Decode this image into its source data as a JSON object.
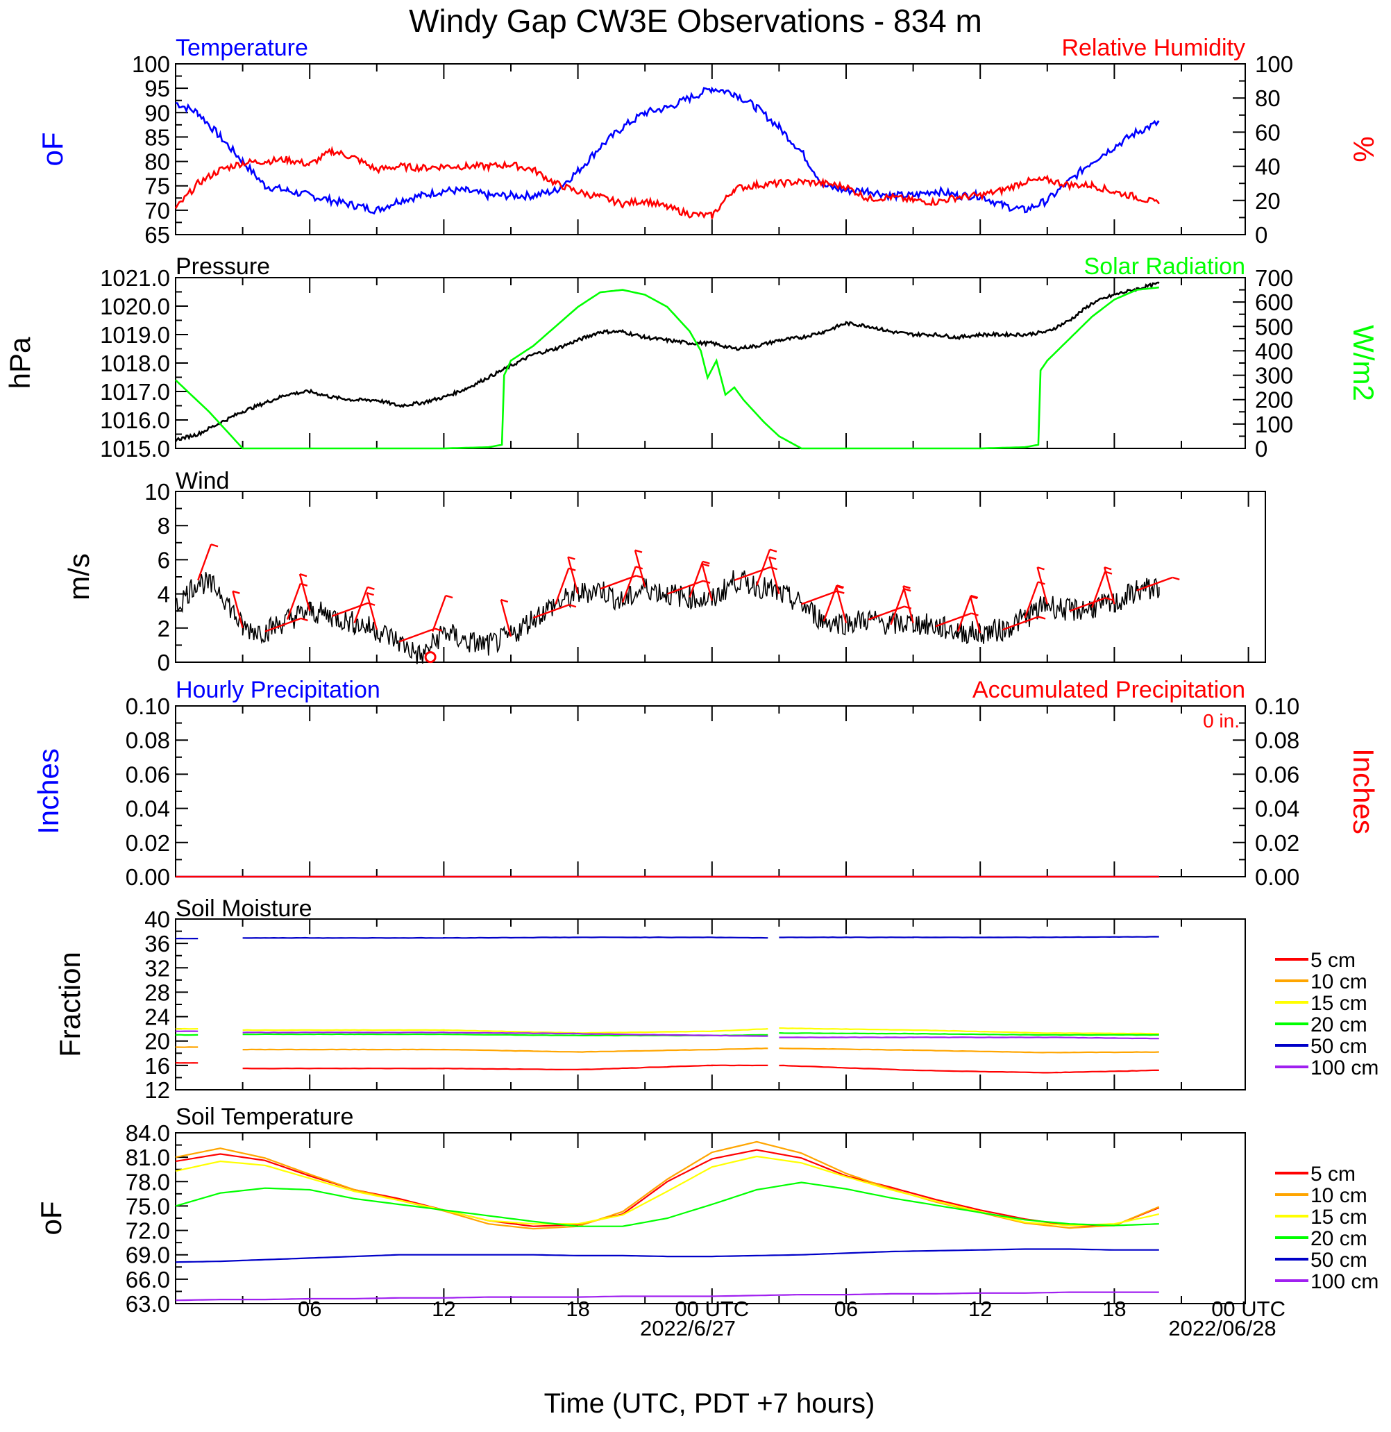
{
  "title": "Windy Gap CW3E Observations - 834 m",
  "x_axis": {
    "ticks": [
      "06",
      "12",
      "18",
      "00 UTC",
      "06",
      "12",
      "18",
      "00 UTC"
    ],
    "dates": [
      "2022/6/27",
      "2022/06/28"
    ],
    "label": "Time (UTC, PDT +7 hours)"
  },
  "colors": {
    "blue": "#0000ff",
    "red": "#ff0000",
    "green": "#00ff00",
    "black": "#000000",
    "orange": "#ffa500",
    "yellow": "#ffff00",
    "purple": "#a020f0",
    "navy": "#0000c8"
  },
  "chart_data": [
    {
      "type": "line",
      "title_left": "Temperature",
      "title_right": "Relative Humidity",
      "ylabel_left": "oF",
      "ylabel_right": "%",
      "ylim_left": [
        65,
        100
      ],
      "ylim_right": [
        0,
        100
      ],
      "yticks_left": [
        "65",
        "70",
        "75",
        "80",
        "85",
        "90",
        "95",
        "100"
      ],
      "yticks_right": [
        "0",
        "20",
        "40",
        "60",
        "80",
        "100"
      ],
      "x_hours": [
        0,
        1,
        2,
        3,
        4,
        5,
        6,
        7,
        8,
        9,
        10,
        11,
        12,
        13,
        14,
        15,
        16,
        17,
        18,
        19,
        20,
        21,
        22,
        23,
        24,
        25,
        26,
        27,
        28,
        29,
        30,
        31,
        32,
        33,
        34,
        35,
        36,
        37,
        38,
        39,
        40,
        41,
        42,
        43,
        44
      ],
      "series": [
        {
          "name": "Temperature",
          "color": "#0000ff",
          "axis": "left",
          "values": [
            92,
            90,
            85,
            80,
            75,
            74,
            73,
            72,
            71,
            70,
            72,
            73,
            74,
            74,
            73,
            73,
            73,
            74,
            78,
            83,
            87,
            90,
            91,
            93,
            95,
            94,
            91,
            87,
            82,
            75,
            74,
            74,
            73,
            73,
            74,
            73,
            73,
            71,
            70,
            72,
            76,
            80,
            83,
            86,
            88
          ]
        },
        {
          "name": "Relative Humidity",
          "color": "#ff0000",
          "axis": "right",
          "values": [
            15,
            30,
            38,
            42,
            43,
            44,
            41,
            49,
            45,
            38,
            40,
            39,
            40,
            40,
            40,
            41,
            38,
            30,
            25,
            22,
            18,
            20,
            16,
            12,
            11,
            27,
            29,
            30,
            31,
            30,
            28,
            21,
            22,
            20,
            19,
            22,
            23,
            26,
            31,
            32,
            29,
            29,
            25,
            22,
            18
          ]
        }
      ]
    },
    {
      "type": "line",
      "title_left": "Pressure",
      "title_right": "Solar Radiation",
      "ylabel_left": "hPa",
      "ylabel_right": "W/m2",
      "ylim_left": [
        1015.0,
        1021.0
      ],
      "ylim_right": [
        0,
        700
      ],
      "yticks_left": [
        "1015.0",
        "1016.0",
        "1017.0",
        "1018.0",
        "1019.0",
        "1020.0",
        "1021.0"
      ],
      "yticks_right": [
        "0",
        "100",
        "200",
        "300",
        "400",
        "500",
        "600",
        "700"
      ],
      "series": [
        {
          "name": "Pressure",
          "color": "#000000",
          "axis": "left",
          "x_hours": [
            0,
            1,
            2,
            3,
            4,
            5,
            6,
            7,
            8,
            9,
            10,
            11,
            12,
            13,
            14,
            15,
            16,
            17,
            18,
            19,
            20,
            21,
            22,
            23,
            24,
            25,
            26,
            27,
            28,
            29,
            30,
            31,
            32,
            33,
            34,
            35,
            36,
            37,
            38,
            39,
            40,
            41,
            42,
            43,
            44
          ],
          "values": [
            1015.3,
            1015.5,
            1015.9,
            1016.3,
            1016.6,
            1016.9,
            1017.0,
            1016.8,
            1016.7,
            1016.7,
            1016.5,
            1016.6,
            1016.8,
            1017.1,
            1017.5,
            1017.9,
            1018.3,
            1018.5,
            1018.8,
            1019.1,
            1019.1,
            1018.9,
            1018.8,
            1018.7,
            1018.7,
            1018.5,
            1018.6,
            1018.8,
            1018.9,
            1019.1,
            1019.4,
            1019.3,
            1019.1,
            1019.0,
            1019.0,
            1018.9,
            1019.0,
            1019.0,
            1019.0,
            1019.1,
            1019.5,
            1020.1,
            1020.4,
            1020.6,
            1020.8
          ]
        },
        {
          "name": "Solar Radiation",
          "color": "#00ff00",
          "axis": "right",
          "x_hours": [
            0,
            1.5,
            2.5,
            3,
            6,
            9,
            12,
            14,
            14.6,
            14.7,
            15,
            16,
            17,
            18,
            19,
            20,
            21,
            22,
            23,
            23.5,
            23.8,
            24.2,
            24.6,
            25,
            25.4,
            25.8,
            26.3,
            27,
            28,
            29,
            30,
            33,
            36,
            38,
            38.6,
            38.7,
            39,
            40,
            41,
            42,
            43,
            44
          ],
          "values": [
            280,
            150,
            50,
            0,
            0,
            0,
            0,
            5,
            15,
            300,
            360,
            420,
            500,
            580,
            640,
            650,
            630,
            580,
            480,
            400,
            290,
            360,
            220,
            250,
            200,
            160,
            110,
            50,
            0,
            0,
            0,
            0,
            0,
            5,
            15,
            320,
            360,
            450,
            540,
            610,
            650,
            660
          ]
        }
      ]
    },
    {
      "type": "line",
      "title_left": "Wind",
      "ylabel_left": "m/s",
      "ylim_left": [
        0,
        10
      ],
      "yticks_left": [
        "0",
        "2",
        "4",
        "6",
        "8",
        "10"
      ],
      "x_hours": [
        0,
        1,
        2,
        3,
        4,
        5,
        6,
        7,
        8,
        9,
        10,
        11,
        12,
        13,
        14,
        15,
        16,
        17,
        18,
        19,
        20,
        21,
        22,
        23,
        24,
        25,
        26,
        27,
        28,
        29,
        30,
        31,
        32,
        33,
        34,
        35,
        36,
        37,
        38,
        39,
        40,
        41,
        42,
        43,
        44
      ],
      "series": [
        {
          "name": "Wind speed",
          "color": "#000000",
          "axis": "left",
          "values": [
            3.2,
            4.8,
            4.2,
            2.0,
            1.8,
            2.5,
            3.0,
            2.7,
            2.3,
            1.9,
            1.2,
            0.3,
            1.8,
            1.2,
            1.0,
            1.5,
            2.6,
            3.4,
            4.0,
            4.3,
            3.5,
            4.4,
            4.0,
            3.8,
            3.6,
            4.8,
            4.5,
            4.0,
            3.4,
            2.4,
            2.3,
            2.5,
            2.2,
            2.3,
            2.1,
            1.8,
            1.7,
            1.9,
            2.6,
            3.4,
            3.0,
            3.2,
            3.4,
            4.2,
            4.4
          ]
        }
      ],
      "barbs": {
        "color": "#ff0000",
        "x_hours": [
          1,
          3,
          4,
          5,
          6,
          7,
          8,
          9,
          10,
          11.5,
          15,
          16,
          17,
          18,
          19,
          20,
          21,
          22,
          23,
          24,
          25,
          26,
          27,
          28,
          29,
          30,
          31,
          32,
          33,
          34,
          35,
          36,
          37,
          38,
          39,
          40,
          41,
          42,
          43
        ]
      }
    },
    {
      "type": "line",
      "title_left": "Hourly Precipitation",
      "title_right": "Accumulated Precipitation",
      "annotation": "0 in.",
      "ylabel_left": "Inches",
      "ylabel_right": "Inches",
      "ylim_left": [
        0,
        0.1
      ],
      "ylim_right": [
        0,
        0.1
      ],
      "yticks_left": [
        "0.00",
        "0.02",
        "0.04",
        "0.06",
        "0.08",
        "0.10"
      ],
      "yticks_right": [
        "0.00",
        "0.02",
        "0.04",
        "0.06",
        "0.08",
        "0.10"
      ],
      "x_hours": [
        0,
        44
      ],
      "series": [
        {
          "name": "Hourly Precipitation",
          "color": "#0000ff",
          "axis": "left",
          "values": [
            0,
            0
          ]
        },
        {
          "name": "Accumulated Precipitation",
          "color": "#ff0000",
          "axis": "right",
          "values": [
            0,
            0
          ]
        }
      ]
    },
    {
      "type": "line",
      "title_left": "Soil Moisture",
      "ylabel_left": "Fraction",
      "ylim_left": [
        12,
        40
      ],
      "yticks_left": [
        "12",
        "16",
        "20",
        "24",
        "28",
        "32",
        "36",
        "40"
      ],
      "legend": [
        "5 cm",
        "10 cm",
        "15 cm",
        "20 cm",
        "50 cm",
        "100 cm"
      ],
      "segments_hours": [
        [
          0,
          1
        ],
        [
          3,
          26.5
        ],
        [
          27,
          44
        ]
      ],
      "series": [
        {
          "name": "5 cm",
          "color": "#ff0000",
          "x_hours": [
            0,
            12,
            18,
            24,
            26.5,
            27,
            33,
            39,
            44
          ],
          "values": [
            16.4,
            15.5,
            15.3,
            16.0,
            16.0,
            16.0,
            15.2,
            14.8,
            15.2
          ]
        },
        {
          "name": "10 cm",
          "color": "#ffa500",
          "x_hours": [
            0,
            12,
            18,
            24,
            26.5,
            27,
            33,
            39,
            44
          ],
          "values": [
            19.0,
            18.6,
            18.2,
            18.6,
            18.8,
            18.8,
            18.5,
            18.1,
            18.2
          ]
        },
        {
          "name": "15 cm",
          "color": "#ffff00",
          "x_hours": [
            0,
            12,
            18,
            24,
            26.5,
            27,
            33,
            39,
            44
          ],
          "values": [
            22.0,
            21.8,
            21.3,
            21.6,
            22.0,
            22.1,
            21.8,
            21.3,
            21.2
          ]
        },
        {
          "name": "20 cm",
          "color": "#00ff00",
          "x_hours": [
            0,
            12,
            18,
            24,
            26.5,
            27,
            33,
            39,
            44
          ],
          "values": [
            21.0,
            21.1,
            20.9,
            20.9,
            21.0,
            21.3,
            21.2,
            21.0,
            21.0
          ]
        },
        {
          "name": "50 cm",
          "color": "#0000c8",
          "x_hours": [
            0,
            12,
            18,
            24,
            26.5,
            27,
            33,
            39,
            44
          ],
          "values": [
            36.8,
            36.9,
            37.0,
            37.0,
            36.9,
            37.0,
            37.0,
            37.0,
            37.1
          ]
        },
        {
          "name": "100 cm",
          "color": "#a020f0",
          "x_hours": [
            0,
            12,
            18,
            24,
            26.5,
            27,
            33,
            39,
            44
          ],
          "values": [
            21.6,
            21.4,
            21.2,
            20.9,
            20.8,
            20.6,
            20.6,
            20.6,
            20.4
          ]
        }
      ]
    },
    {
      "type": "line",
      "title_left": "Soil Temperature",
      "ylabel_left": "oF",
      "ylim_left": [
        63,
        84
      ],
      "yticks_left": [
        "63.0",
        "66.0",
        "69.0",
        "72.0",
        "75.0",
        "78.0",
        "81.0",
        "84.0"
      ],
      "legend": [
        "5 cm",
        "10 cm",
        "15 cm",
        "20 cm",
        "50 cm",
        "100 cm"
      ],
      "x_hours": [
        0,
        2,
        4,
        6,
        8,
        10,
        12,
        14,
        16,
        18,
        20,
        22,
        24,
        26,
        28,
        30,
        32,
        34,
        36,
        38,
        40,
        42,
        44
      ],
      "series": [
        {
          "name": "5 cm",
          "color": "#ff0000",
          "values": [
            80.5,
            81.4,
            80.6,
            78.7,
            77.0,
            75.9,
            74.5,
            73.2,
            72.5,
            72.7,
            74.0,
            78.0,
            80.8,
            81.9,
            80.9,
            78.7,
            77.3,
            75.8,
            74.5,
            73.4,
            72.6,
            72.6,
            74.8
          ]
        },
        {
          "name": "10 cm",
          "color": "#ffa500",
          "values": [
            81.0,
            82.1,
            80.9,
            78.9,
            77.0,
            75.7,
            74.4,
            72.8,
            72.2,
            72.5,
            74.3,
            78.3,
            81.6,
            82.9,
            81.5,
            79.0,
            77.1,
            75.5,
            74.2,
            72.9,
            72.3,
            72.6,
            74.9
          ]
        },
        {
          "name": "15 cm",
          "color": "#ffff00",
          "values": [
            79.3,
            80.5,
            80.0,
            78.4,
            76.8,
            75.7,
            74.5,
            73.2,
            72.8,
            72.8,
            73.9,
            76.8,
            79.8,
            81.1,
            80.3,
            78.6,
            77.0,
            75.6,
            74.3,
            73.0,
            72.6,
            72.8,
            74.0
          ]
        },
        {
          "name": "20 cm",
          "color": "#00ff00",
          "values": [
            75.0,
            76.6,
            77.2,
            77.0,
            75.9,
            75.2,
            74.5,
            73.8,
            73.1,
            72.5,
            72.5,
            73.5,
            75.2,
            77.0,
            77.9,
            77.1,
            76.0,
            75.1,
            74.2,
            73.3,
            72.8,
            72.6,
            72.8
          ]
        },
        {
          "name": "50 cm",
          "color": "#0000c8",
          "values": [
            68.1,
            68.2,
            68.4,
            68.6,
            68.8,
            69.0,
            69.0,
            69.0,
            69.0,
            68.9,
            68.9,
            68.8,
            68.8,
            68.9,
            69.0,
            69.2,
            69.4,
            69.5,
            69.6,
            69.7,
            69.7,
            69.6,
            69.6
          ]
        },
        {
          "name": "100 cm",
          "color": "#a020f0",
          "values": [
            63.4,
            63.5,
            63.5,
            63.6,
            63.6,
            63.7,
            63.7,
            63.8,
            63.8,
            63.8,
            63.9,
            63.9,
            63.9,
            64.0,
            64.1,
            64.1,
            64.2,
            64.2,
            64.3,
            64.3,
            64.4,
            64.4,
            64.4
          ]
        }
      ]
    }
  ]
}
